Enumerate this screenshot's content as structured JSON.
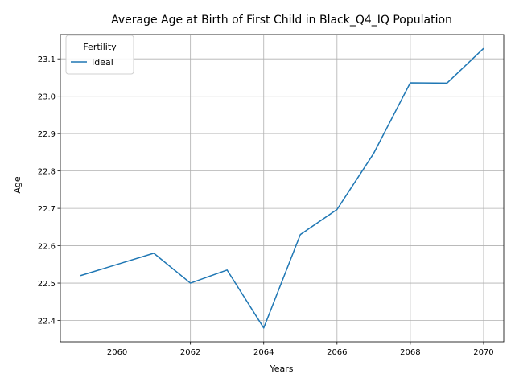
{
  "chart_data": {
    "type": "line",
    "title": "Average Age at Birth of First Child in Black_Q4_IQ Population",
    "xlabel": "Years",
    "ylabel": "Age",
    "xlim": [
      2058.45,
      2070.55
    ],
    "ylim": [
      22.343,
      23.165
    ],
    "xticks": [
      2060,
      2062,
      2064,
      2066,
      2068,
      2070
    ],
    "yticks": [
      22.4,
      22.5,
      22.6,
      22.7,
      22.8,
      22.9,
      23.0,
      23.1
    ],
    "grid": true,
    "legend": {
      "title": "Fertility",
      "placement": "top-left"
    },
    "x": [
      2059,
      2060,
      2061,
      2062,
      2063,
      2064,
      2065,
      2066,
      2067,
      2068,
      2069,
      2070
    ],
    "series": [
      {
        "name": "Ideal",
        "color": "#1f77b4",
        "values": [
          22.52,
          22.55,
          22.58,
          22.5,
          22.535,
          22.38,
          22.63,
          22.697,
          22.847,
          23.036,
          23.035,
          23.128
        ]
      }
    ]
  }
}
